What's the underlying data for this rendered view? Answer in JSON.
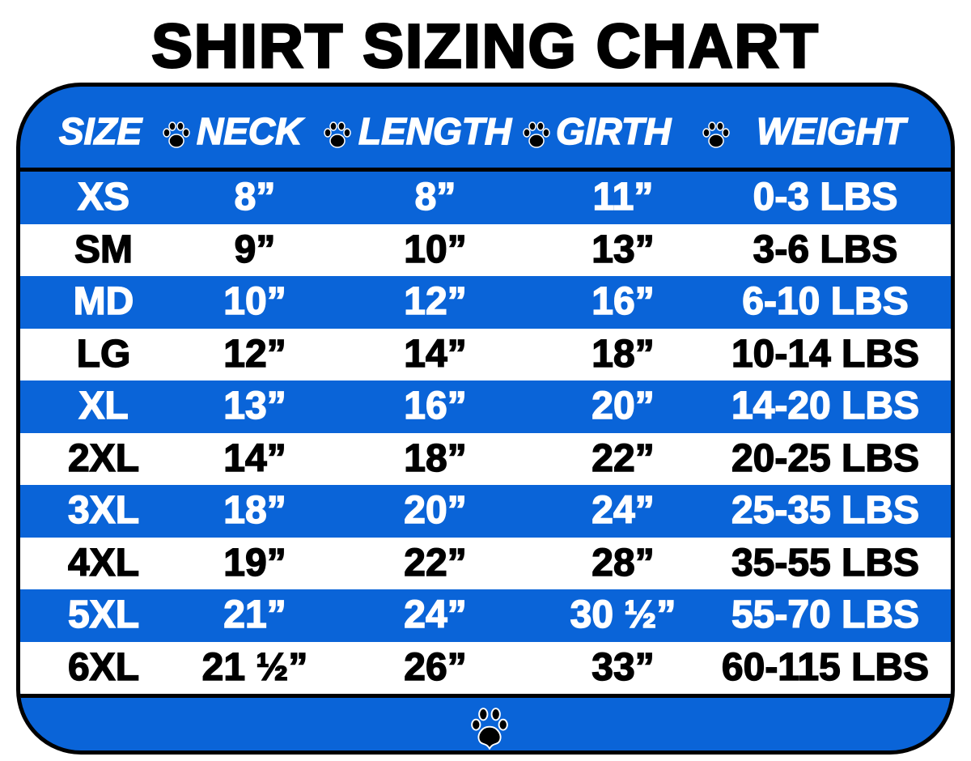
{
  "title": "SHIRT SIZING CHART",
  "colors": {
    "blue": "#0a64d8",
    "white": "#ffffff",
    "text_dark": "#000000"
  },
  "icons": {
    "separator": "paw-print-icon",
    "footer": "paw-print-icon"
  },
  "chart_data": {
    "type": "table",
    "title": "SHIRT SIZING CHART",
    "columns": [
      "SIZE",
      "NECK",
      "LENGTH",
      "GIRTH",
      "WEIGHT"
    ],
    "rows": [
      [
        "XS",
        "8”",
        "8”",
        "11”",
        "0-3 LBS"
      ],
      [
        "SM",
        "9”",
        "10”",
        "13”",
        "3-6 LBS"
      ],
      [
        "MD",
        "10”",
        "12”",
        "16”",
        "6-10 LBS"
      ],
      [
        "LG",
        "12”",
        "14”",
        "18”",
        "10-14 LBS"
      ],
      [
        "XL",
        "13”",
        "16”",
        "20”",
        "14-20 LBS"
      ],
      [
        "2XL",
        "14”",
        "18”",
        "22”",
        "20-25 LBS"
      ],
      [
        "3XL",
        "18”",
        "20”",
        "24”",
        "25-35 LBS"
      ],
      [
        "4XL",
        "19”",
        "22”",
        "28”",
        "35-55 LBS"
      ],
      [
        "5XL",
        "21”",
        "24”",
        "30 ½”",
        "55-70 LBS"
      ],
      [
        "6XL",
        "21 ½”",
        "26”",
        "33”",
        "60-115 LBS"
      ]
    ],
    "row_colors": [
      "blue",
      "white",
      "blue",
      "white",
      "blue",
      "white",
      "blue",
      "white",
      "blue",
      "white"
    ]
  }
}
